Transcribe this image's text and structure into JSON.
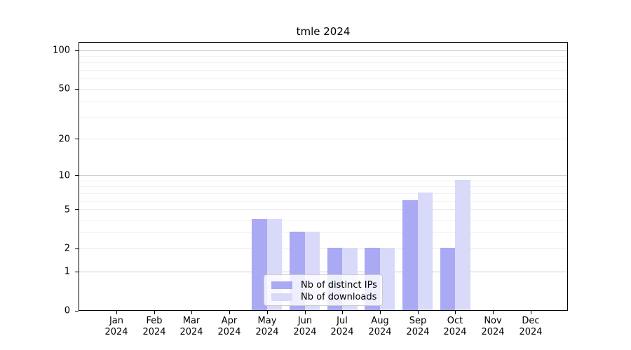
{
  "chart_data": {
    "type": "bar",
    "title": "tmle 2024",
    "categories": [
      "Jan",
      "Feb",
      "Mar",
      "Apr",
      "May",
      "Jun",
      "Jul",
      "Aug",
      "Sep",
      "Oct",
      "Nov",
      "Dec"
    ],
    "category_year": "2024",
    "series": [
      {
        "name": "Nb of distinct IPs",
        "color": "#a9a9f4",
        "values": [
          0,
          0,
          0,
          0,
          4,
          3,
          2,
          2,
          6,
          2,
          0,
          0
        ]
      },
      {
        "name": "Nb of downloads",
        "color": "#d9d9f9",
        "values": [
          0,
          0,
          0,
          0,
          4,
          3,
          2,
          2,
          7,
          9,
          0,
          0
        ]
      }
    ],
    "xlabel": "",
    "ylabel": "",
    "yscale": "log1p",
    "ylim": [
      0,
      116
    ],
    "y_tick_values": [
      100,
      50,
      20,
      10,
      5,
      2,
      1,
      0
    ],
    "y_grid_values": [
      100,
      90,
      80,
      70,
      60,
      50,
      40,
      30,
      20,
      10,
      9,
      8,
      7,
      6,
      5,
      4,
      3,
      2,
      1
    ],
    "grid": true,
    "legend_position": "lower center",
    "colors": {
      "axis": "#000000",
      "major_grid": "#cccccc",
      "grid": "#e9e9e9",
      "minor_grid": "#f1f1f1",
      "legend_border": "#cccccc",
      "text": "#000000"
    }
  }
}
